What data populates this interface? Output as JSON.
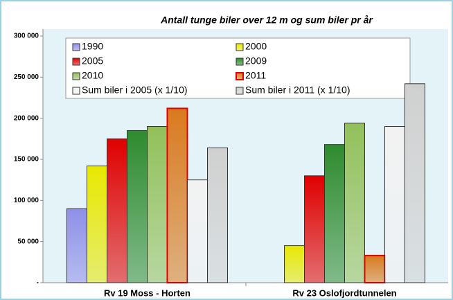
{
  "chart_data": {
    "type": "bar",
    "title": "Antall tunge biler over 12 m og sum biler pr år",
    "categories": [
      "Rv 19 Moss - Horten",
      "Rv 23 Oslofjordtunnelen"
    ],
    "series": [
      {
        "name": "1990",
        "color": "#8f8fe8",
        "values": [
          90000,
          null
        ]
      },
      {
        "name": "2000",
        "color": "#e8e800",
        "values": [
          142000,
          45000
        ]
      },
      {
        "name": "2005",
        "color": "#e00000",
        "values": [
          175000,
          130000
        ]
      },
      {
        "name": "2009",
        "color": "#2e8b2e",
        "values": [
          185000,
          168000
        ]
      },
      {
        "name": "2010",
        "color": "#93c05a",
        "values": [
          190000,
          194000
        ]
      },
      {
        "name": "2011",
        "color": "#d97a1e",
        "values": [
          212000,
          33000
        ]
      },
      {
        "name": "Sum biler i 2005 (x 1/10)",
        "color": "#f2f2f2",
        "values": [
          125000,
          190000
        ]
      },
      {
        "name": "Sum biler i 2011 (x 1/10)",
        "color": "#d0d0d0",
        "values": [
          164000,
          242000
        ]
      }
    ],
    "ylim": [
      0,
      300000
    ],
    "yticks": [
      {
        "value": 0,
        "label": "-"
      },
      {
        "value": 50000,
        "label": "50 000"
      },
      {
        "value": 100000,
        "label": "100 000"
      },
      {
        "value": 150000,
        "label": "150 000"
      },
      {
        "value": 200000,
        "label": "200 000"
      },
      {
        "value": 250000,
        "label": "250 000"
      },
      {
        "value": 300000,
        "label": "300 000"
      }
    ]
  }
}
